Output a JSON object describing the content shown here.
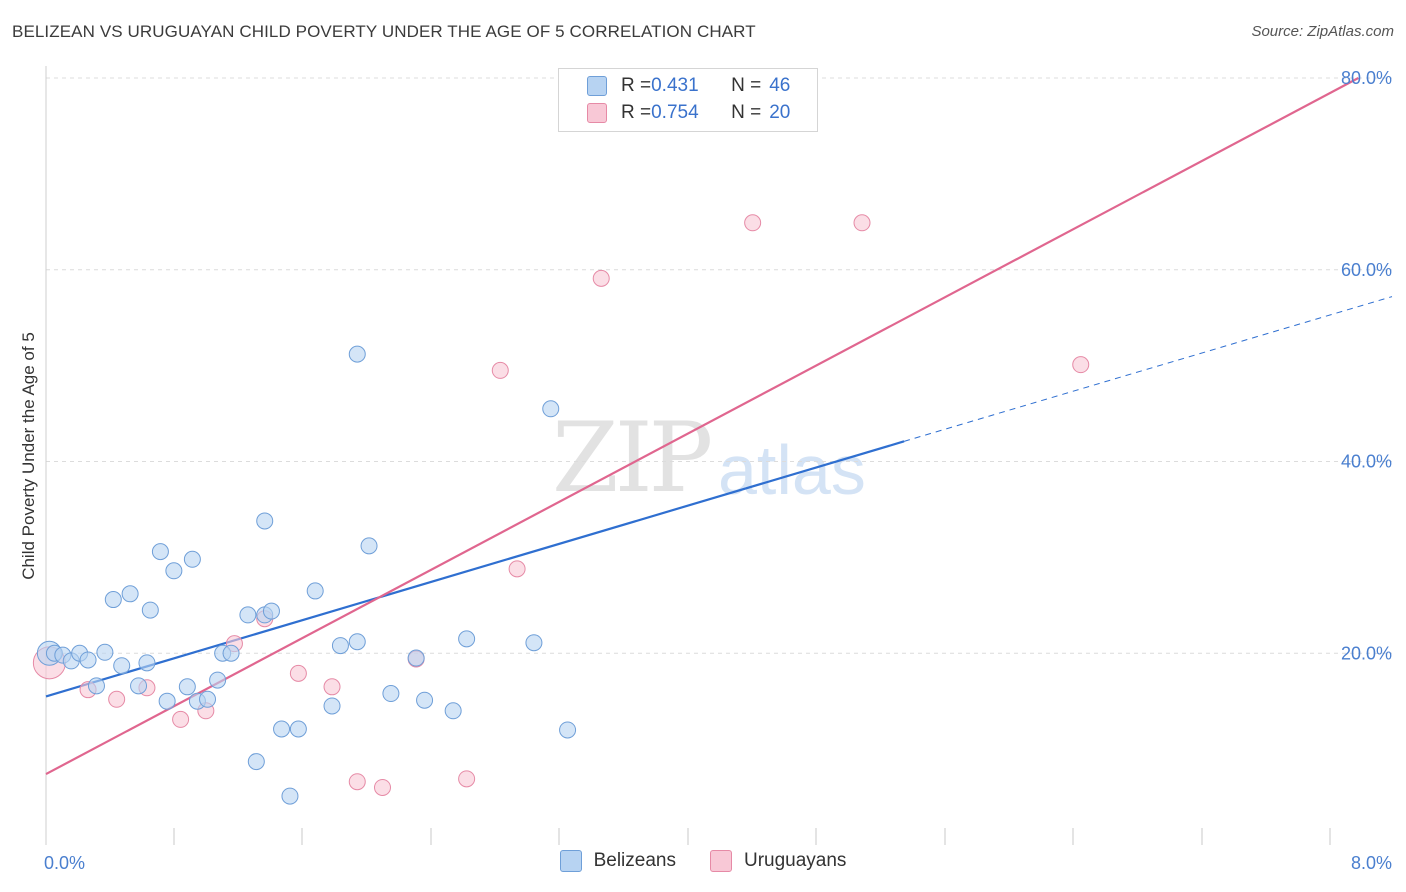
{
  "header": {
    "title": "BELIZEAN VS URUGUAYAN CHILD POVERTY UNDER THE AGE OF 5 CORRELATION CHART",
    "source": "Source: ZipAtlas.com"
  },
  "watermark": {
    "zip": "ZIP",
    "atlas": "atlas"
  },
  "legend": {
    "rows": [
      {
        "r_label": "R = ",
        "r_value": "0.431",
        "n_label": "N = ",
        "n_value": "46"
      },
      {
        "r_label": "R = ",
        "r_value": "0.754",
        "n_label": "N = ",
        "n_value": "20"
      }
    ]
  },
  "bottom_legend": {
    "series1": "Belizeans",
    "series2": "Uruguayans"
  },
  "colors": {
    "belizean_fill": "#b7d3f2",
    "belizean_stroke": "#6f9fd8",
    "belizean_line": "#2f6fd0",
    "uruguayan_fill": "#f8c8d6",
    "uruguayan_stroke": "#e68aa6",
    "uruguayan_line": "#e0668f",
    "tick_text": "#4a7fcf"
  },
  "chart_data": {
    "type": "scatter",
    "title": "BELIZEAN VS URUGUAYAN CHILD POVERTY UNDER THE AGE OF 5 CORRELATION CHART",
    "xlabel": "",
    "ylabel": "Child Poverty Under the Age of 5",
    "xlim": [
      0,
      8
    ],
    "ylim": [
      0,
      80
    ],
    "x_tick_labels": [
      "0.0%",
      "8.0%"
    ],
    "y_ticks": [
      20,
      40,
      60,
      80
    ],
    "y_tick_labels": [
      "20.0%",
      "40.0%",
      "60.0%",
      "80.0%"
    ],
    "grid": true,
    "legend_position": "top-center",
    "series": [
      {
        "name": "Belizeans",
        "r": 0.431,
        "n": 46,
        "points": [
          [
            0.02,
            20.0
          ],
          [
            0.05,
            20.0
          ],
          [
            0.1,
            19.8
          ],
          [
            0.15,
            19.2
          ],
          [
            0.2,
            20.0
          ],
          [
            0.25,
            19.3
          ],
          [
            0.3,
            16.6
          ],
          [
            0.35,
            20.1
          ],
          [
            0.4,
            25.6
          ],
          [
            0.45,
            18.7
          ],
          [
            0.5,
            26.2
          ],
          [
            0.55,
            16.6
          ],
          [
            0.6,
            19.0
          ],
          [
            0.62,
            24.5
          ],
          [
            0.68,
            30.6
          ],
          [
            0.72,
            15.0
          ],
          [
            0.76,
            28.6
          ],
          [
            0.84,
            16.5
          ],
          [
            0.87,
            29.8
          ],
          [
            0.9,
            15.0
          ],
          [
            0.96,
            15.2
          ],
          [
            1.02,
            17.2
          ],
          [
            1.05,
            20.0
          ],
          [
            1.1,
            20.0
          ],
          [
            1.2,
            24.0
          ],
          [
            1.25,
            8.7
          ],
          [
            1.3,
            33.8
          ],
          [
            1.3,
            24.0
          ],
          [
            1.34,
            24.4
          ],
          [
            1.4,
            12.1
          ],
          [
            1.45,
            5.1
          ],
          [
            1.5,
            12.1
          ],
          [
            1.6,
            26.5
          ],
          [
            1.7,
            14.5
          ],
          [
            1.75,
            20.8
          ],
          [
            1.85,
            21.2
          ],
          [
            1.85,
            51.2
          ],
          [
            1.92,
            31.2
          ],
          [
            2.05,
            15.8
          ],
          [
            2.2,
            19.5
          ],
          [
            2.25,
            15.1
          ],
          [
            2.42,
            14.0
          ],
          [
            2.5,
            21.5
          ],
          [
            2.9,
            21.1
          ],
          [
            3.0,
            45.5
          ],
          [
            3.1,
            12.0
          ]
        ]
      },
      {
        "name": "Uruguayans",
        "r": 0.754,
        "n": 20,
        "points": [
          [
            0.02,
            19.0
          ],
          [
            0.25,
            16.2
          ],
          [
            0.42,
            15.2
          ],
          [
            0.6,
            16.4
          ],
          [
            0.8,
            13.1
          ],
          [
            0.95,
            14.0
          ],
          [
            1.12,
            21.0
          ],
          [
            1.3,
            23.6
          ],
          [
            1.5,
            17.9
          ],
          [
            1.7,
            16.5
          ],
          [
            1.85,
            6.6
          ],
          [
            2.0,
            6.0
          ],
          [
            2.2,
            19.4
          ],
          [
            2.5,
            6.9
          ],
          [
            2.7,
            49.5
          ],
          [
            2.8,
            28.8
          ],
          [
            3.3,
            59.1
          ],
          [
            4.2,
            64.9
          ],
          [
            4.85,
            64.9
          ],
          [
            6.15,
            50.1
          ]
        ]
      }
    ],
    "trendlines": [
      {
        "series": "Belizeans",
        "x": [
          0,
          5.1
        ],
        "y": [
          15.5,
          42.1
        ],
        "dashed_to": [
          8,
          57.2
        ]
      },
      {
        "series": "Uruguayans",
        "x": [
          0,
          7.8
        ],
        "y": [
          7.4,
          80.0
        ]
      }
    ]
  }
}
